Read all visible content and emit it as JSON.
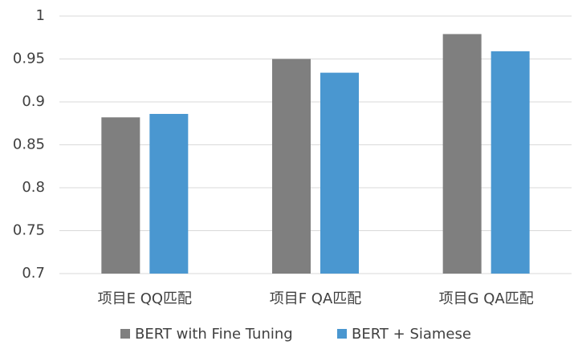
{
  "chart_data": {
    "type": "bar",
    "categories": [
      "项目E QQ匹配",
      "项目F QA匹配",
      "项目G QA匹配"
    ],
    "series": [
      {
        "name": "BERT with Fine Tuning",
        "color": "#7f7f7f",
        "values": [
          0.882,
          0.95,
          0.979
        ]
      },
      {
        "name": "BERT + Siamese",
        "color": "#4a97d0",
        "values": [
          0.886,
          0.934,
          0.959
        ]
      }
    ],
    "ylim": [
      0.7,
      1
    ],
    "yticks": [
      0.7,
      0.75,
      0.8,
      0.85,
      0.9,
      0.95,
      1
    ],
    "grid": true,
    "legend": "bottom"
  }
}
